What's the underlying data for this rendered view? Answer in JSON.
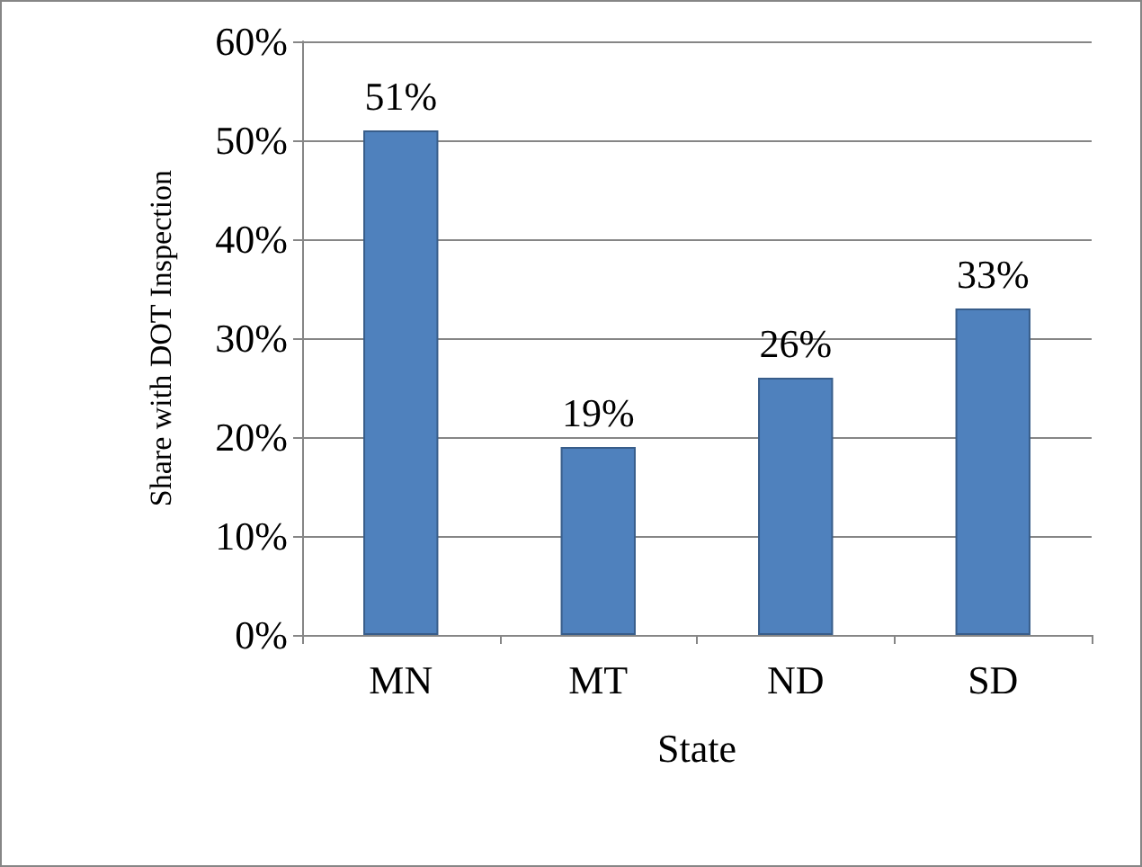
{
  "chart_data": {
    "type": "bar",
    "xlabel": "State",
    "ylabel": "Share with DOT Inspection",
    "categories": [
      "MN",
      "MT",
      "ND",
      "SD"
    ],
    "values": [
      51,
      19,
      26,
      33
    ],
    "value_labels": [
      "51%",
      "19%",
      "26%",
      "33%"
    ],
    "color": "#4f81bd",
    "ylim": [
      0,
      60
    ],
    "yticks": [
      {
        "value": 0,
        "label": "0%"
      },
      {
        "value": 10,
        "label": "10%"
      },
      {
        "value": 20,
        "label": "20%"
      },
      {
        "value": 30,
        "label": "30%"
      },
      {
        "value": 40,
        "label": "40%"
      },
      {
        "value": 50,
        "label": "50%"
      },
      {
        "value": 60,
        "label": "60%"
      }
    ],
    "grid": "y"
  }
}
